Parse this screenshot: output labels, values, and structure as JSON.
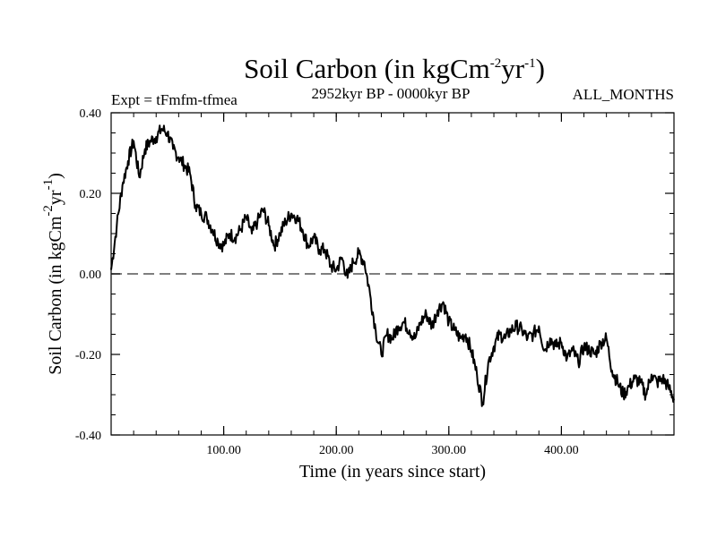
{
  "chart_data": {
    "type": "line",
    "title": {
      "prefix": "Soil Carbon (in kgCm",
      "sup1": "-2",
      "mid": "yr",
      "sup2": "-1",
      "suffix": ")"
    },
    "subtitle_left": "Expt = tFmfm-tfmea",
    "subtitle_center": "2952kyr BP - 0000kyr BP",
    "subtitle_right": "ALL_MONTHS",
    "xlabel": "Time (in years since start)",
    "ylabel": {
      "prefix": "Soil Carbon (in kgCm",
      "sup1": "-2",
      "mid": "yr",
      "sup2": "-1",
      "suffix": ")"
    },
    "xlim": [
      0,
      500
    ],
    "ylim": [
      -0.4,
      0.4
    ],
    "x_ticks": [
      100,
      200,
      300,
      400
    ],
    "x_tick_labels": [
      "100.00",
      "200.00",
      "300.00",
      "400.00"
    ],
    "y_ticks": [
      -0.4,
      -0.2,
      0.0,
      0.2,
      0.4
    ],
    "y_tick_labels": [
      "-0.40",
      "-0.20",
      "0.00",
      "0.20",
      "0.40"
    ],
    "reference_line": {
      "y": 0.0,
      "style": "dashed"
    },
    "grid": false,
    "series": [
      {
        "name": "Soil Carbon",
        "x": [
          0,
          5,
          10,
          15,
          20,
          25,
          30,
          35,
          40,
          45,
          50,
          55,
          60,
          65,
          70,
          75,
          80,
          85,
          90,
          95,
          100,
          105,
          110,
          115,
          120,
          125,
          130,
          135,
          140,
          145,
          150,
          155,
          160,
          165,
          170,
          175,
          180,
          185,
          190,
          195,
          200,
          205,
          210,
          215,
          220,
          225,
          230,
          235,
          240,
          245,
          250,
          255,
          260,
          265,
          270,
          275,
          280,
          285,
          290,
          295,
          300,
          305,
          310,
          315,
          320,
          325,
          330,
          335,
          340,
          345,
          350,
          355,
          360,
          365,
          370,
          375,
          380,
          385,
          390,
          395,
          400,
          405,
          410,
          415,
          420,
          425,
          430,
          435,
          440,
          445,
          450,
          455,
          460,
          465,
          470,
          475,
          480,
          485,
          490,
          495,
          500
        ],
        "values": [
          0.01,
          0.12,
          0.22,
          0.28,
          0.33,
          0.24,
          0.31,
          0.33,
          0.34,
          0.36,
          0.35,
          0.31,
          0.29,
          0.27,
          0.25,
          0.17,
          0.15,
          0.14,
          0.11,
          0.08,
          0.07,
          0.1,
          0.09,
          0.11,
          0.14,
          0.1,
          0.13,
          0.16,
          0.12,
          0.07,
          0.1,
          0.13,
          0.15,
          0.14,
          0.11,
          0.07,
          0.09,
          0.06,
          0.06,
          0.02,
          0.01,
          0.04,
          -0.01,
          0.03,
          0.05,
          0.03,
          -0.05,
          -0.14,
          -0.2,
          -0.15,
          -0.16,
          -0.13,
          -0.12,
          -0.14,
          -0.16,
          -0.12,
          -0.1,
          -0.13,
          -0.09,
          -0.07,
          -0.12,
          -0.14,
          -0.16,
          -0.15,
          -0.19,
          -0.25,
          -0.32,
          -0.22,
          -0.18,
          -0.15,
          -0.16,
          -0.14,
          -0.13,
          -0.14,
          -0.16,
          -0.15,
          -0.13,
          -0.19,
          -0.16,
          -0.18,
          -0.17,
          -0.21,
          -0.19,
          -0.22,
          -0.18,
          -0.19,
          -0.2,
          -0.17,
          -0.16,
          -0.24,
          -0.27,
          -0.3,
          -0.28,
          -0.26,
          -0.27,
          -0.3,
          -0.25,
          -0.27,
          -0.26,
          -0.28,
          -0.31
        ]
      }
    ]
  }
}
